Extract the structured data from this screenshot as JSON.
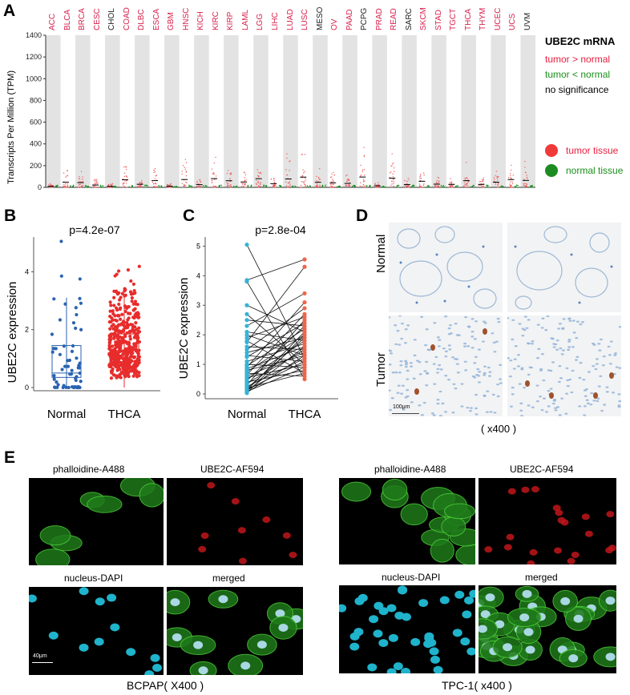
{
  "panel_letters": {
    "a": "A",
    "b": "B",
    "c": "C",
    "d": "D",
    "e": "E"
  },
  "colors": {
    "tumor": "#e8203f",
    "normal": "#1b8f1b",
    "ns": "#000000",
    "cancer_red": "#d81f4a",
    "cancer_black": "#222222",
    "box_blue": "#2a63b0",
    "box_red": "#e82c2c",
    "pair_blue": "#36b3d6",
    "pair_red": "#f06549"
  },
  "panel_a": {
    "chart_data": {
      "type": "scatter",
      "title": "UBE2C mRNA",
      "ylabel": "Transcripts Per Million (TPM)",
      "ylim": [
        0,
        1400
      ],
      "yticks": [
        0,
        200,
        400,
        600,
        800,
        1000,
        1200,
        1400
      ],
      "categories": [
        "ACC",
        "BLCA",
        "BRCA",
        "CESC",
        "CHOL",
        "COAD",
        "DLBC",
        "ESCA",
        "GBM",
        "HNSC",
        "KICH",
        "KIRC",
        "KIRP",
        "LAML",
        "LGG",
        "LIHC",
        "LUAD",
        "LUSC",
        "MESO",
        "OV",
        "PAAD",
        "PCPG",
        "PRAD",
        "READ",
        "SARC",
        "SKCM",
        "STAD",
        "TGCT",
        "THCA",
        "THYM",
        "UCEC",
        "UCS",
        "UVM"
      ],
      "category_significance": [
        "up",
        "up",
        "up",
        "up",
        "ns",
        "up",
        "up",
        "up",
        "up",
        "up",
        "up",
        "up",
        "up",
        "up",
        "up",
        "up",
        "up",
        "up",
        "ns",
        "up",
        "up",
        "ns",
        "up",
        "up",
        "ns",
        "up",
        "up",
        "up",
        "up",
        "up",
        "up",
        "up",
        "ns"
      ],
      "series": [
        {
          "name": "tumor tissue"
        },
        {
          "name": "normal tissue"
        }
      ],
      "legend": {
        "title": "UBE2C mRNA",
        "up": "tumor > normal",
        "down": "tumor < normal",
        "ns": "no significance",
        "tumor": "tumor tissue",
        "normal": "normal tissue"
      }
    }
  },
  "panel_b": {
    "chart_data": {
      "type": "box",
      "title": "p=4.2e-07",
      "ylabel": "UBE2C expression",
      "ylim": [
        0,
        5.2
      ],
      "yticks": [
        0,
        2,
        4
      ],
      "categories": [
        "Normal",
        "THCA"
      ],
      "boxes": [
        {
          "name": "Normal",
          "min": 0.05,
          "q1": 0.35,
          "median": 0.5,
          "q3": 1.45,
          "max": 3.1
        },
        {
          "name": "THCA",
          "min": 0.0,
          "q1": 0.9,
          "median": 1.28,
          "q3": 1.85,
          "max": 3.2
        }
      ]
    }
  },
  "panel_c": {
    "chart_data": {
      "type": "line",
      "title": "p=2.8e-04",
      "ylabel": "UBE2C expression",
      "ylim": [
        0,
        5.2
      ],
      "yticks": [
        0,
        1,
        2,
        3,
        4,
        5
      ],
      "categories": [
        "Normal",
        "THCA"
      ],
      "pairs": [
        [
          5.05,
          1.2
        ],
        [
          3.85,
          4.55
        ],
        [
          3.8,
          0.5
        ],
        [
          3.0,
          2.1
        ],
        [
          2.7,
          1.0
        ],
        [
          2.5,
          2.3
        ],
        [
          2.3,
          3.4
        ],
        [
          2.1,
          1.8
        ],
        [
          2.0,
          1.3
        ],
        [
          1.9,
          2.6
        ],
        [
          1.8,
          0.7
        ],
        [
          1.75,
          4.3
        ],
        [
          1.6,
          1.5
        ],
        [
          1.5,
          2.9
        ],
        [
          1.4,
          1.9
        ],
        [
          1.3,
          1.1
        ],
        [
          1.25,
          2.4
        ],
        [
          1.1,
          1.7
        ],
        [
          1.0,
          0.9
        ],
        [
          0.95,
          2.2
        ],
        [
          0.9,
          3.1
        ],
        [
          0.85,
          1.6
        ],
        [
          0.8,
          1.3
        ],
        [
          0.75,
          2.0
        ],
        [
          0.7,
          0.6
        ],
        [
          0.65,
          2.7
        ],
        [
          0.6,
          1.4
        ],
        [
          0.55,
          1.0
        ],
        [
          0.5,
          1.8
        ],
        [
          0.45,
          2.3
        ],
        [
          0.4,
          0.8
        ],
        [
          0.35,
          1.5
        ],
        [
          0.3,
          2.5
        ],
        [
          0.25,
          1.2
        ],
        [
          0.2,
          0.7
        ],
        [
          0.18,
          1.9
        ],
        [
          0.15,
          1.1
        ],
        [
          0.12,
          2.1
        ],
        [
          0.1,
          1.6
        ],
        [
          0.08,
          0.9
        ],
        [
          0.05,
          1.3
        ],
        [
          0.03,
          2.0
        ]
      ]
    }
  },
  "panel_d": {
    "row_labels": {
      "normal": "Normal",
      "tumor": "Tumor"
    },
    "scale_bar": "100μm",
    "magnification": "( x400 )"
  },
  "panel_e": {
    "left": {
      "labels": {
        "tl": "phalloidine-A488",
        "tr": "UBE2C-AF594",
        "bl": "nucleus-DAPI",
        "br": "merged"
      },
      "scale_bar": "40μm",
      "caption": "BCPAP( X400 )"
    },
    "right": {
      "labels": {
        "tl": "phalloidine-A488",
        "tr": "UBE2C-AF594",
        "bl": "nucleus-DAPI",
        "br": "merged"
      },
      "caption": "TPC-1( x400 )"
    }
  }
}
